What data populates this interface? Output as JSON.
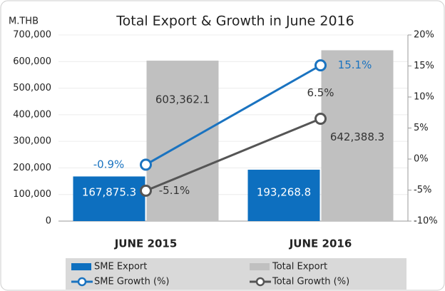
{
  "chart_data": {
    "type": "bar-line",
    "title": "Total Export & Growth in June 2016",
    "y_axis_label": "M.THB",
    "categories": [
      "JUNE 2015",
      "JUNE 2016"
    ],
    "series": [
      {
        "name": "SME Export",
        "type": "bar",
        "color": "#0d6fbf",
        "values": [
          167875.3,
          193268.8
        ],
        "value_labels": [
          "167,875.3",
          "193,268.8"
        ]
      },
      {
        "name": "Total Export",
        "type": "bar",
        "color": "#c0c0c0",
        "values": [
          603362.1,
          642388.3
        ],
        "value_labels": [
          "603,362.1",
          "642,388.3"
        ]
      },
      {
        "name": "SME Growth (%)",
        "type": "line",
        "axis": "y2",
        "color": "#1a73c0",
        "values": [
          -0.9,
          15.1
        ],
        "value_labels": [
          "-0.9%",
          "15.1%"
        ]
      },
      {
        "name": "Total Growth (%)",
        "type": "line",
        "axis": "y2",
        "color": "#555555",
        "values": [
          -5.1,
          6.5
        ],
        "value_labels": [
          "-5.1%",
          "6.5%"
        ]
      }
    ],
    "ylim": [
      0,
      700000
    ],
    "yticks": [
      0,
      {
        "value": 100000,
        "label": "100,000"
      },
      {
        "value": 200000,
        "label": "200,000"
      },
      {
        "value": 300000,
        "label": "300,000"
      },
      {
        "value": 400000,
        "label": "400,000"
      },
      {
        "value": 500000,
        "label": "500,000"
      },
      {
        "value": 600000,
        "label": "600,000"
      },
      {
        "value": 700000,
        "label": "700,000"
      }
    ],
    "y2lim": [
      -10,
      20
    ],
    "y2ticks": [
      {
        "value": -10,
        "label": "-10%"
      },
      {
        "value": -5,
        "label": "-5%"
      },
      {
        "value": 0,
        "label": "0%"
      },
      {
        "value": 5,
        "label": "5%"
      },
      {
        "value": 10,
        "label": "10%"
      },
      {
        "value": 15,
        "label": "15%"
      },
      {
        "value": 20,
        "label": "20%"
      }
    ],
    "grid": true,
    "legend": "bottom"
  }
}
